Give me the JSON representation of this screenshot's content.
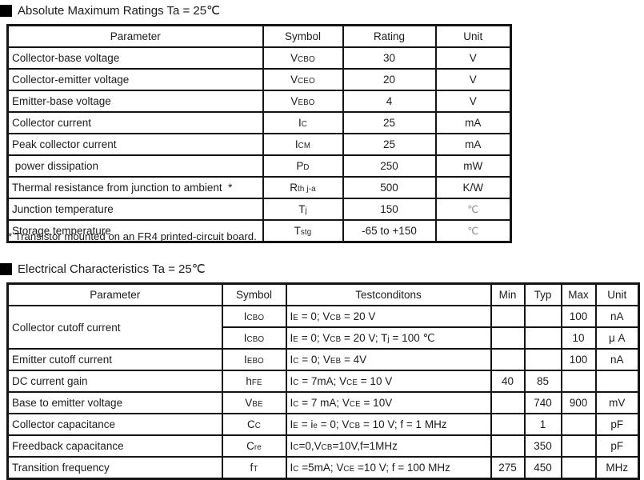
{
  "s1": {
    "title": "Absolute Maximum Ratings Ta = 25℃",
    "headers": [
      "Parameter",
      "Symbol",
      "Rating",
      "Unit"
    ],
    "rows": [
      {
        "p": "Collector-base voltage",
        "s": "V~CBO~",
        "r": "30",
        "u": "V"
      },
      {
        "p": "Collector-emitter voltage",
        "s": "V~CEO~",
        "r": "20",
        "u": "V"
      },
      {
        "p": "Emitter-base voltage",
        "s": "V~EBO~",
        "r": "4",
        "u": "V"
      },
      {
        "p": "Collector current",
        "s": "I~C~",
        "r": "25",
        "u": "mA"
      },
      {
        "p": "Peak collector current",
        "s": "I~CM~",
        "r": "25",
        "u": "mA"
      },
      {
        "p": " power dissipation",
        "s": "P~D~",
        "r": "250",
        "u": "mW"
      },
      {
        "p": "Thermal resistance from junction to ambient  *",
        "s": "R~th j-a~",
        "r": "500",
        "u": "K/W"
      },
      {
        "p": "Junction temperature",
        "s": "T~j~",
        "r": "150",
        "u": "℃"
      },
      {
        "p": "Storage temperature",
        "s": "T~stg~",
        "r": "-65 to +150",
        "u": "℃"
      }
    ],
    "footnote": "* Transistor mounted on an FR4 printed-circuit board."
  },
  "s2": {
    "title": "Electrical Characteristics Ta = 25℃",
    "headers": [
      "Parameter",
      "Symbol",
      "Testconditons",
      "Min",
      "Typ",
      "Max",
      "Unit"
    ],
    "rows": [
      {
        "p": "Collector cutoff current",
        "s": "I~CBO~",
        "t": "I~E~ = 0; V~CB~ = 20 V",
        "min": "",
        "typ": "",
        "max": "100",
        "u": "nA"
      },
      {
        "p": "",
        "s": "I~CBO~",
        "t": "I~E~ = 0; V~CB~ = 20 V; T~j~ = 100 ℃",
        "min": "",
        "typ": "",
        "max": "10",
        "u": "μ A"
      },
      {
        "p": "Emitter cutoff current",
        "s": "I~EBO~",
        "t": "I~C~ = 0; V~EB~ = 4V",
        "min": "",
        "typ": "",
        "max": "100",
        "u": "nA"
      },
      {
        "p": "DC current gain",
        "s": "h~FE~",
        "t": "I~C~ = 7mA; V~CE~ = 10 V",
        "min": "40",
        "typ": "85",
        "max": "",
        "u": ""
      },
      {
        "p": "Base to emitter voltage",
        "s": "V~BE~",
        "t": "I~C~ = 7 mA; V~CE~ = 10V",
        "min": "",
        "typ": "740",
        "max": "900",
        "u": "mV"
      },
      {
        "p": "Collector capacitance",
        "s": "C~C~",
        "t": "I~E~ = i~e~ = 0; V~CB~ = 10 V; f = 1 MHz",
        "min": "",
        "typ": "1",
        "max": "",
        "u": "pF"
      },
      {
        "p": "Freedback capacitance",
        "s": "C~re~",
        "t": "I~C~=0,V~CB~=10V,f=1MHz",
        "min": "",
        "typ": "350",
        "max": "",
        "u": "pF"
      },
      {
        "p": "Transition frequency",
        "s": "f~T~",
        "t": "I~C~ =5mA; V~CE~ =10 V; f = 100 MHz",
        "min": "275",
        "typ": "450",
        "max": "",
        "u": "MHz"
      }
    ]
  }
}
